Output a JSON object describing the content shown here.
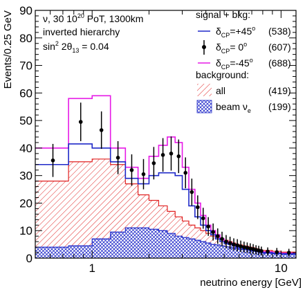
{
  "chart_data": {
    "type": "histogram",
    "xlabel": "neutrino energy [GeV]",
    "ylabel": "Events/0.25 GeV",
    "x_scale": "log",
    "xlim": [
      0.5,
      12
    ],
    "ylim": [
      0,
      90
    ],
    "x_tick_labels": [
      {
        "value": 1,
        "label": "1"
      },
      {
        "value": 10,
        "label": "10"
      }
    ],
    "y_tick_labels": [
      0,
      10,
      20,
      30,
      40,
      50,
      60,
      70,
      80,
      90
    ],
    "header_lines": {
      "line1": {
        "prefix": "ν,  30 10",
        "sup": "20",
        "suffix": " PoT, 1300km"
      },
      "line2": "inverted hierarchy",
      "line3": {
        "prefix": "sin",
        "sup": "2",
        "mid": " 2θ",
        "sub": "13",
        "suffix": " = 0.04"
      }
    },
    "legend": {
      "position": "top-right",
      "signal_header": "signal + bkg:",
      "background_header": "background:",
      "entries": [
        {
          "key": "dcp_plus45",
          "label_main": "δ",
          "label_sub": "CP",
          "label_rest": "=+45",
          "label_sup": "o",
          "count": "(538)",
          "color": "#1e28c8"
        },
        {
          "key": "dcp_0",
          "label_main": "δ",
          "label_sub": "CP",
          "label_rest": "= 0",
          "label_sup": "o",
          "count": "(607)",
          "color": "#000000"
        },
        {
          "key": "dcp_minus45",
          "label_main": "δ",
          "label_sub": "CP",
          "label_rest": "=-45",
          "label_sup": "o",
          "count": "(688)",
          "color": "#e619e6"
        },
        {
          "key": "bkg_all",
          "label": "all",
          "count": "(419)",
          "color": "#e02020"
        },
        {
          "key": "bkg_beam_nue",
          "label_main": "beam ν",
          "label_sub": "e",
          "count": "(199)",
          "color": "#1e28c8"
        }
      ]
    },
    "bin_edges": [
      0.5,
      0.75,
      1.0,
      1.25,
      1.5,
      1.75,
      2.0,
      2.25,
      2.5,
      2.75,
      3.0,
      3.25,
      3.5,
      3.75,
      4.0,
      4.25,
      4.5,
      4.75,
      5.0,
      5.25,
      5.5,
      5.75,
      6.0,
      6.25,
      6.5,
      6.75,
      7.0,
      7.25,
      7.5,
      7.75,
      8.0,
      9.0,
      10.0,
      12.0
    ],
    "series": [
      {
        "key": "dcp_minus45",
        "style": "step",
        "color": "#e619e6",
        "values": [
          40,
          58,
          59,
          40,
          33,
          29,
          37,
          41,
          44,
          42,
          33,
          25,
          20,
          15.5,
          12,
          10,
          8.5,
          7,
          6,
          5.5,
          5,
          4.5,
          4.3,
          4,
          3.8,
          3.5,
          3.2,
          3,
          2.8,
          2.6,
          2.3,
          2,
          1.8
        ]
      },
      {
        "key": "dcp_plus45",
        "style": "step",
        "color": "#1e28c8",
        "values": [
          34,
          41.5,
          40,
          35,
          29,
          27,
          30,
          31,
          31,
          30,
          25,
          19,
          15,
          12,
          10,
          8.5,
          7,
          6,
          5.3,
          5,
          4.5,
          4,
          3.8,
          3.5,
          3.3,
          3,
          2.8,
          2.6,
          2.4,
          2.2,
          2,
          1.8,
          1.6
        ]
      },
      {
        "key": "dcp_0",
        "style": "points",
        "color": "#000000",
        "x": [
          0.62,
          0.87,
          1.12,
          1.37,
          1.62,
          1.87,
          2.12,
          2.37,
          2.62,
          2.87,
          3.12,
          3.37,
          3.62,
          3.87,
          4.12,
          4.37,
          4.62,
          4.87,
          5.12,
          5.37,
          5.62,
          5.87,
          6.12,
          6.37,
          6.62,
          6.87,
          7.12,
          7.37,
          7.62,
          7.87,
          8.5,
          9.5,
          11
        ],
        "values": [
          35.5,
          49.5,
          46.5,
          36.5,
          32,
          30.5,
          34.5,
          37.5,
          38,
          37,
          31,
          24,
          18.5,
          14.5,
          11.5,
          9.5,
          8,
          7,
          6,
          5.5,
          5,
          4.7,
          4.3,
          4,
          3.8,
          3.5,
          3.3,
          3,
          2.8,
          2.6,
          2.4,
          2.2,
          2
        ],
        "errors": [
          6,
          7,
          6.8,
          6,
          5.7,
          5.5,
          5.9,
          6.1,
          6.2,
          6.1,
          5.6,
          4.9,
          4.3,
          3.8,
          3.4,
          3.1,
          2.8,
          2.6,
          2.4,
          2.3,
          2.2,
          2.2,
          2.1,
          2,
          1.9,
          1.9,
          1.8,
          1.7,
          1.7,
          1.6,
          1.5,
          1.5,
          1.4
        ]
      },
      {
        "key": "bkg_all",
        "style": "hatched",
        "color": "#e02020",
        "values": [
          28,
          35,
          36,
          34,
          27,
          23,
          21,
          19,
          17,
          15,
          13.5,
          12,
          11,
          10,
          9,
          8,
          7.5,
          7,
          6.5,
          6,
          5.5,
          5,
          4.8,
          4.5,
          4.3,
          4,
          3.8,
          3.5,
          3.2,
          3,
          2.8,
          2.5,
          2.2
        ]
      },
      {
        "key": "bkg_beam_nue",
        "style": "crosshatched",
        "color": "#1e28c8",
        "values": [
          4,
          4.5,
          7,
          9.5,
          11,
          11,
          10.5,
          10,
          9,
          8,
          7.5,
          7,
          6.5,
          6,
          5.5,
          5,
          4.8,
          4.5,
          4.2,
          4,
          3.7,
          3.5,
          3.3,
          3.1,
          3,
          2.8,
          2.6,
          2.4,
          2.2,
          2,
          1.8,
          1.6,
          1.4
        ]
      }
    ]
  }
}
